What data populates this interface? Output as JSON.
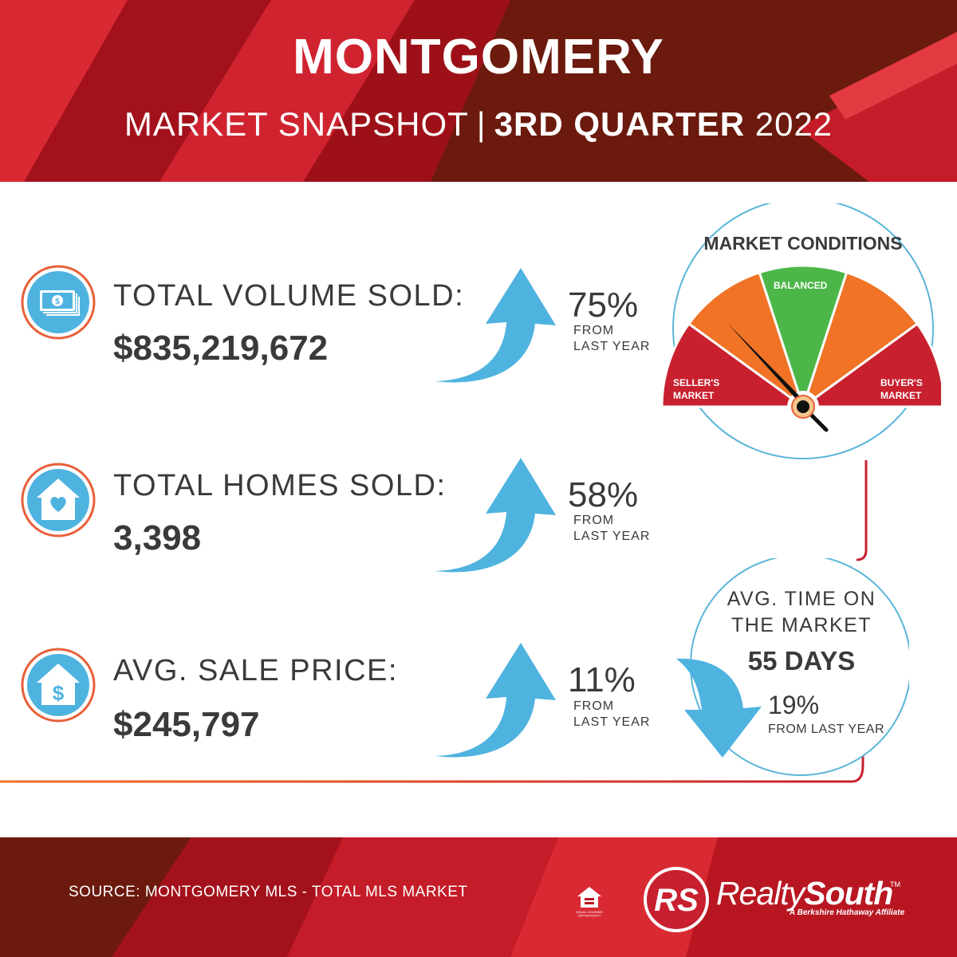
{
  "header": {
    "title": "MONTGOMERY",
    "subtitle_plain": "MARKET SNAPSHOT",
    "subtitle_separator": "|",
    "subtitle_bold": "3RD QUARTER",
    "subtitle_year": "2022"
  },
  "stats": [
    {
      "icon": "money-icon",
      "label": "TOTAL VOLUME SOLD:",
      "value": "$835,219,672",
      "change": "75%",
      "change_line1": "FROM",
      "change_line2": "LAST YEAR",
      "direction": "up"
    },
    {
      "icon": "house-heart-icon",
      "label": "TOTAL HOMES SOLD:",
      "value": "3,398",
      "change": "58%",
      "change_line1": "FROM",
      "change_line2": "LAST YEAR",
      "direction": "up"
    },
    {
      "icon": "house-dollar-icon",
      "label": "AVG. SALE PRICE:",
      "value": "$245,797",
      "change": "11%",
      "change_line1": "FROM",
      "change_line2": "LAST YEAR",
      "direction": "up"
    }
  ],
  "market_conditions": {
    "title": "MARKET CONDITIONS",
    "balanced_label": "BALANCED",
    "seller_line1": "SELLER'S",
    "seller_line2": "MARKET",
    "buyer_line1": "BUYER'S",
    "buyer_line2": "MARKET",
    "needle_position": "between seller's market and balanced"
  },
  "time_on_market": {
    "title_line1": "AVG. TIME ON",
    "title_line2": "THE MARKET",
    "value": "55 DAYS",
    "change": "19%",
    "change_label": "FROM LAST YEAR",
    "direction": "down"
  },
  "footer": {
    "source": "SOURCE: MONTGOMERY MLS - TOTAL MLS MARKET",
    "eho_text": "EQUAL HOUSING OPPORTUNITY",
    "logo_mark": "RS",
    "brand_light": "Realty",
    "brand_bold": "South",
    "brand_tm": "TM",
    "brand_tagline": "A Berkshire Hathaway Affiliate"
  },
  "colors": {
    "red": "#b81722",
    "dark_red": "#6b1a0d",
    "arrow_blue": "#4fb3e0",
    "gauge_red": "#c8202f",
    "gauge_orange": "#f07326",
    "gauge_green": "#4cb748",
    "ring_blue": "#5ab5d9"
  }
}
